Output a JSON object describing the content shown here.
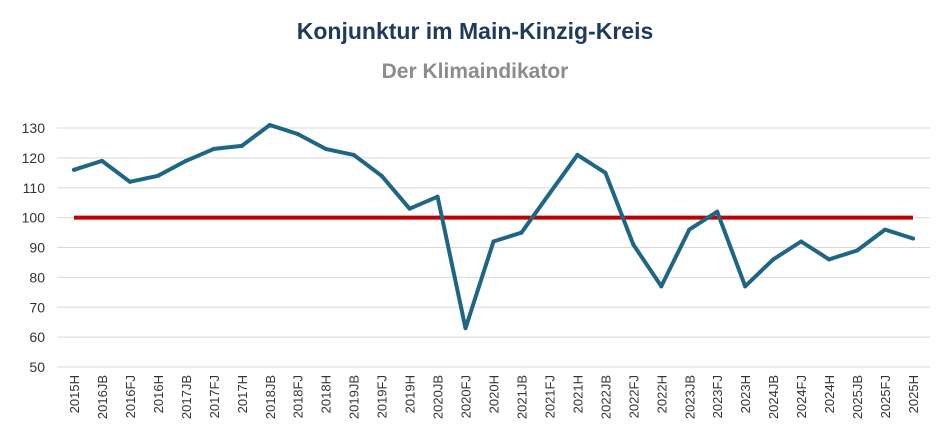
{
  "chart_data": {
    "type": "line",
    "title": "Konjunktur im Main-Kinzig-Kreis",
    "subtitle": "Der Klimaindikator",
    "xlabel": "",
    "ylabel": "",
    "ylim": [
      50,
      130
    ],
    "yticks": [
      130,
      120,
      110,
      100,
      90,
      80,
      70,
      60,
      50
    ],
    "grid": true,
    "categories": [
      "2015H",
      "2016JB",
      "2016FJ",
      "2016H",
      "2017JB",
      "2017FJ",
      "2017H",
      "2018JB",
      "2018FJ",
      "2018H",
      "2019JB",
      "2019FJ",
      "2019H",
      "2020JB",
      "2020FJ",
      "2020H",
      "2021JB",
      "2021FJ",
      "2021H",
      "2022JB",
      "2022FJ",
      "2022H",
      "2023JB",
      "2023FJ",
      "2023H",
      "2024JB",
      "2024FJ",
      "2024H",
      "2025JB",
      "2025FJ",
      "2025H"
    ],
    "series": [
      {
        "values": [
          116,
          119,
          112,
          114,
          119,
          123,
          124,
          131,
          128,
          123,
          121,
          114,
          103,
          107,
          63,
          92,
          95,
          108,
          121,
          115,
          91,
          77,
          96,
          102,
          77,
          86,
          92,
          86,
          89,
          96,
          93
        ],
        "color": "#1f6685"
      }
    ],
    "reference_line": {
      "value": 100,
      "color": "#c00000"
    }
  }
}
